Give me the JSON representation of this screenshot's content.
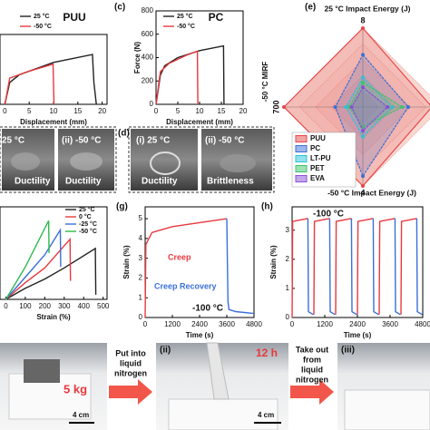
{
  "chart_data": [
    {
      "type": "line",
      "title": "PUU",
      "xlabel": "Displacement (mm)",
      "xlim": [
        -1,
        21
      ],
      "xticks": [
        0,
        5,
        10,
        15,
        20
      ],
      "ylim": [
        0,
        800
      ],
      "series": [
        {
          "name": "25 °C",
          "color": "#222222",
          "x": [
            0,
            1,
            3,
            10,
            18,
            18.3,
            18.8
          ],
          "values": [
            0,
            250,
            340,
            480,
            570,
            250,
            0
          ]
        },
        {
          "name": "-50 °C",
          "color": "#e8383d",
          "x": [
            0,
            1,
            5,
            9.9,
            10.1
          ],
          "values": [
            0,
            300,
            380,
            460,
            0
          ]
        }
      ]
    },
    {
      "type": "line",
      "title": "PC",
      "xlabel": "Displacement (mm)",
      "ylabel": "Force (N)",
      "xlim": [
        0,
        20
      ],
      "xticks": [
        0,
        5,
        10,
        15,
        20
      ],
      "ylim": [
        0,
        800
      ],
      "yticks": [
        0,
        200,
        400,
        600,
        800
      ],
      "series": [
        {
          "name": "25 °C",
          "color": "#222222",
          "x": [
            0,
            1,
            2,
            5,
            10,
            15.5,
            15.6
          ],
          "values": [
            0,
            250,
            330,
            400,
            460,
            500,
            0
          ]
        },
        {
          "name": "-50 °C",
          "color": "#e8383d",
          "x": [
            0,
            1,
            3,
            7,
            9.5,
            9.6
          ],
          "values": [
            0,
            280,
            350,
            420,
            455,
            0
          ]
        }
      ]
    },
    {
      "type": "radar",
      "title": "25 °C Impact Energy (J)",
      "bottom_title": "-50 °C Impact Energy (J)",
      "axes": [
        {
          "label": null,
          "max": 8,
          "max_label": "8"
        },
        {
          "label": null,
          "max": 8
        },
        {
          "label": null,
          "max": 4,
          "max_label": "4"
        },
        {
          "label": "-50 °C MIRF",
          "max": 700,
          "max_label": "700"
        }
      ],
      "series": [
        {
          "name": "PUU",
          "color": "#e8474a",
          "values": [
            8,
            7,
            4,
            700
          ]
        },
        {
          "name": "PC",
          "color": "#3a6fd8",
          "values": [
            5.3,
            4.6,
            3.5,
            245
          ]
        },
        {
          "name": "LT-PU",
          "color": "#29c4d8",
          "values": [
            3,
            3,
            1.5,
            150
          ]
        },
        {
          "name": "PET",
          "color": "#3cc46a",
          "values": [
            2.5,
            4,
            1,
            120
          ]
        },
        {
          "name": "EVA",
          "color": "#8a4fd8",
          "values": [
            2,
            2.5,
            1.2,
            100
          ]
        }
      ]
    },
    {
      "type": "line",
      "xlabel": "Strain (%)",
      "xlim": [
        -30,
        520
      ],
      "xticks": [
        0,
        100,
        200,
        300,
        400,
        500
      ],
      "ylim": [
        0,
        10
      ],
      "series": [
        {
          "name": "25 °C",
          "color": "#222222",
          "x": [
            0,
            100,
            200,
            300,
            460,
            462
          ],
          "values": [
            0,
            1.2,
            2.2,
            3.4,
            5.5,
            0.5
          ]
        },
        {
          "name": "0 °C",
          "color": "#e8383d",
          "x": [
            0,
            100,
            200,
            330,
            332
          ],
          "values": [
            0,
            1.8,
            3.4,
            6.5,
            2
          ]
        },
        {
          "name": "-25 °C",
          "color": "#3a6fd8",
          "x": [
            0,
            100,
            200,
            280,
            282
          ],
          "values": [
            0,
            2.4,
            4.8,
            7.5,
            3.5
          ]
        },
        {
          "name": "-50 °C",
          "color": "#2fb84a",
          "x": [
            0,
            100,
            220,
            222
          ],
          "values": [
            0,
            3.5,
            8.5,
            5
          ]
        }
      ]
    },
    {
      "type": "line",
      "xlabel": "Time (s)",
      "ylabel": "Strain (%)",
      "annotation": "-100 °C",
      "xlim": [
        0,
        4800
      ],
      "xticks": [
        0,
        1200,
        2400,
        3600,
        4800
      ],
      "ylim": [
        0,
        5.6
      ],
      "yticks": [
        0,
        1,
        2,
        3,
        4,
        5
      ],
      "series": [
        {
          "name": "Creep",
          "color": "#e8383d",
          "x": [
            0,
            30,
            300,
            1200,
            2400,
            3600
          ],
          "values": [
            0,
            3.7,
            4.3,
            4.6,
            4.8,
            5.0
          ]
        },
        {
          "name": "Creep Recovery",
          "color": "#3a6fd8",
          "x": [
            3600,
            3650,
            3700,
            4000,
            4800
          ],
          "values": [
            5.0,
            0.8,
            0.4,
            0.3,
            0.2
          ]
        }
      ]
    },
    {
      "type": "line",
      "xlabel": "Time (s)",
      "ylabel": "Strain (%)",
      "annotation": "-100 °C",
      "xlim": [
        0,
        4800
      ],
      "xticks": [
        0,
        1200,
        2400,
        3600,
        4800
      ],
      "ylim": [
        0,
        3.8
      ],
      "yticks": [
        0,
        1,
        2,
        3
      ],
      "series": [
        {
          "color": "#e8383d",
          "x": [
            0,
            20,
            580,
            null,
            800,
            820,
            1380,
            null,
            1600,
            1620,
            2180,
            null,
            2400,
            2420,
            2980,
            null,
            3200,
            3220,
            3780,
            null,
            4000,
            4020,
            4580,
            null
          ],
          "values": [
            0,
            3.3,
            3.4,
            null,
            0.1,
            3.3,
            3.4,
            null,
            0.1,
            3.3,
            3.4,
            null,
            0.1,
            3.3,
            3.4,
            null,
            0.1,
            3.3,
            3.4,
            null,
            0.1,
            3.3,
            3.4,
            null
          ]
        },
        {
          "color": "#3a6fd8",
          "x": [
            580,
            600,
            780,
            null,
            1380,
            1400,
            1580,
            null,
            2180,
            2200,
            2380,
            null,
            2980,
            3000,
            3180,
            null,
            3780,
            3800,
            3980,
            null,
            4580,
            4600,
            4780,
            null
          ],
          "values": [
            3.4,
            0.2,
            0.1,
            null,
            3.4,
            0.2,
            0.1,
            null,
            3.4,
            0.2,
            0.1,
            null,
            3.4,
            0.2,
            0.1,
            null,
            3.4,
            0.2,
            0.1,
            null,
            3.4,
            0.2,
            0.1,
            null
          ]
        }
      ]
    }
  ],
  "panel_labels": {
    "c": "(c)",
    "d": "(d)",
    "e": "(e)",
    "g": "(g)",
    "h": "(h)"
  },
  "photos_row2": [
    {
      "label": "25 °C",
      "caption": "Ductility"
    },
    {
      "label": "(ii) -50 °C",
      "caption": "Ductility"
    },
    {
      "label": "(i) 25 °C",
      "caption": "Ductility"
    },
    {
      "label": "(ii) -50 °C",
      "caption": "Brittleness"
    }
  ],
  "photos_row4": {
    "i": {
      "weight": "5 kg",
      "scale": "4 cm"
    },
    "step1": [
      "Put into",
      "liquid",
      "nitrogen"
    ],
    "ii": {
      "label": "(ii)",
      "time": "12 h",
      "scale": "4 cm"
    },
    "step2": [
      "Take out",
      "from",
      "liquid",
      "nitrogen"
    ],
    "iii": {
      "label": "(iii)"
    }
  }
}
